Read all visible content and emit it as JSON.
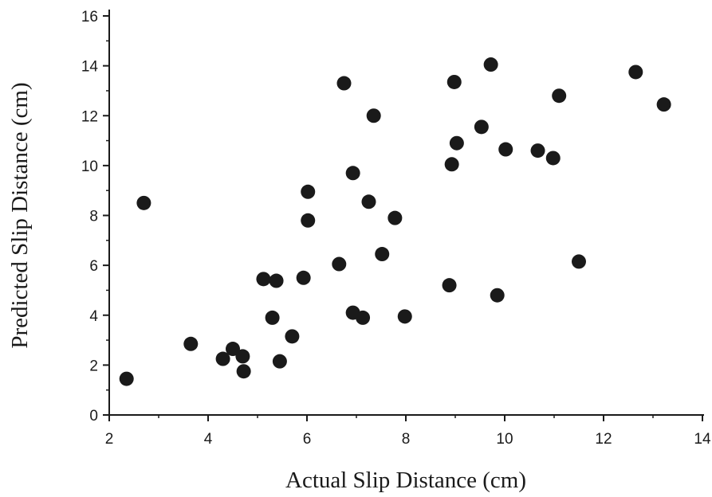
{
  "chart_data": {
    "type": "scatter",
    "title": "",
    "xlabel": "Actual Slip Distance (cm)",
    "ylabel": "Predicted Slip Distance (cm)",
    "xlim": [
      2,
      14
    ],
    "ylim": [
      0,
      16
    ],
    "x_ticks": [
      "2",
      "4",
      "6",
      "8",
      "10",
      "12",
      "14"
    ],
    "y_ticks": [
      "0",
      "2",
      "4",
      "6",
      "8",
      "10",
      "12",
      "14",
      "16"
    ],
    "grid": false,
    "legend": "none",
    "marker_color": "#1a1a1a",
    "points": [
      {
        "x": 2.35,
        "y": 1.45
      },
      {
        "x": 2.7,
        "y": 8.5
      },
      {
        "x": 3.65,
        "y": 2.85
      },
      {
        "x": 4.3,
        "y": 2.25
      },
      {
        "x": 4.5,
        "y": 2.65
      },
      {
        "x": 4.7,
        "y": 2.35
      },
      {
        "x": 4.72,
        "y": 1.75
      },
      {
        "x": 5.12,
        "y": 5.45
      },
      {
        "x": 5.3,
        "y": 3.9
      },
      {
        "x": 5.38,
        "y": 5.38
      },
      {
        "x": 5.45,
        "y": 2.15
      },
      {
        "x": 5.7,
        "y": 3.15
      },
      {
        "x": 5.93,
        "y": 5.5
      },
      {
        "x": 6.02,
        "y": 8.95
      },
      {
        "x": 6.02,
        "y": 7.8
      },
      {
        "x": 6.65,
        "y": 6.05
      },
      {
        "x": 6.75,
        "y": 13.3
      },
      {
        "x": 6.93,
        "y": 9.7
      },
      {
        "x": 6.93,
        "y": 4.1
      },
      {
        "x": 7.13,
        "y": 3.9
      },
      {
        "x": 7.25,
        "y": 8.55
      },
      {
        "x": 7.35,
        "y": 12.0
      },
      {
        "x": 7.52,
        "y": 6.45
      },
      {
        "x": 7.78,
        "y": 7.9
      },
      {
        "x": 7.98,
        "y": 3.95
      },
      {
        "x": 8.88,
        "y": 5.2
      },
      {
        "x": 8.93,
        "y": 10.05
      },
      {
        "x": 8.98,
        "y": 13.35
      },
      {
        "x": 9.03,
        "y": 10.9
      },
      {
        "x": 9.53,
        "y": 11.55
      },
      {
        "x": 9.72,
        "y": 14.05
      },
      {
        "x": 9.85,
        "y": 4.8
      },
      {
        "x": 10.02,
        "y": 10.65
      },
      {
        "x": 10.67,
        "y": 10.6
      },
      {
        "x": 10.98,
        "y": 10.3
      },
      {
        "x": 11.1,
        "y": 12.8
      },
      {
        "x": 11.5,
        "y": 6.15
      },
      {
        "x": 12.65,
        "y": 13.75
      },
      {
        "x": 13.22,
        "y": 12.45
      }
    ]
  }
}
